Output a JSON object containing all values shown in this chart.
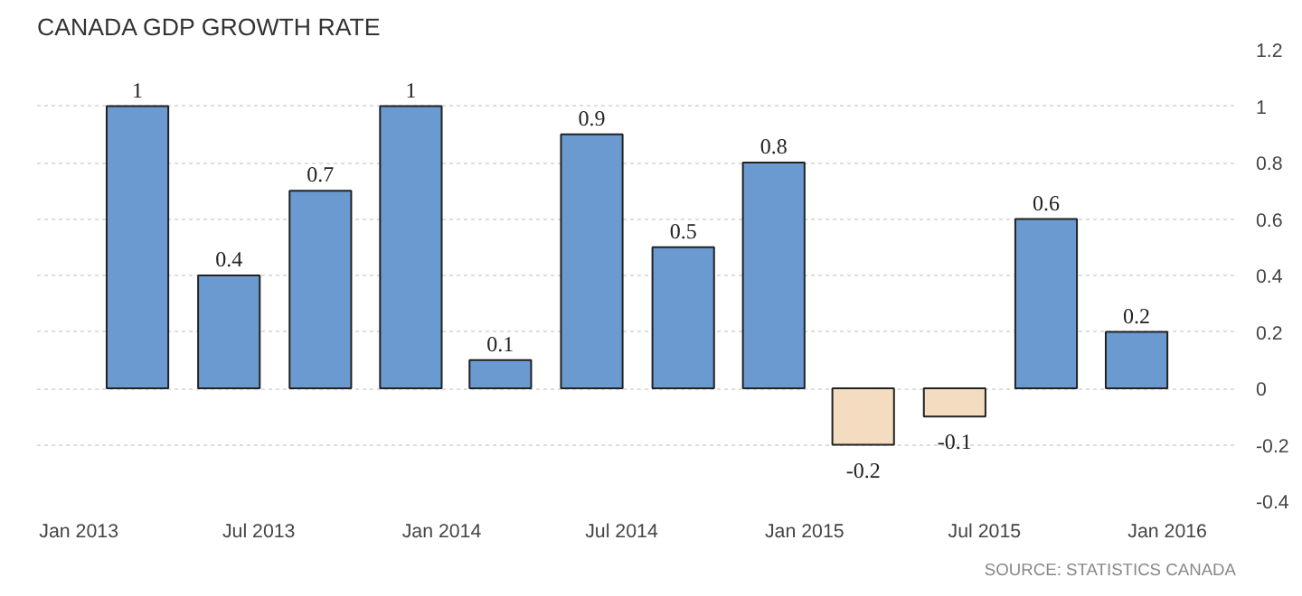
{
  "chart_data": {
    "type": "bar",
    "title": "CANADA GDP GROWTH RATE",
    "x": [
      "2013-03",
      "2013-06",
      "2013-09",
      "2013-12",
      "2014-03",
      "2014-06",
      "2014-09",
      "2014-12",
      "2015-03",
      "2015-06",
      "2015-09",
      "2015-12"
    ],
    "values": [
      1,
      0.4,
      0.7,
      1,
      0.1,
      0.9,
      0.5,
      0.8,
      -0.2,
      -0.1,
      0.6,
      0.2
    ],
    "colors": [
      "#6a9acf",
      "#6a9acf",
      "#6a9acf",
      "#6a9acf",
      "#6a9acf",
      "#6a9acf",
      "#6a9acf",
      "#6a9acf",
      "#f3dcc0",
      "#f3dcc0",
      "#6a9acf",
      "#6a9acf"
    ],
    "data_labels": true,
    "xlim": [
      "2012-11-20",
      "2016-03-10"
    ],
    "xticks": [
      {
        "value": "2013-01",
        "label": "Jan 2013"
      },
      {
        "value": "2013-07",
        "label": "Jul 2013"
      },
      {
        "value": "2014-01",
        "label": "Jan 2014"
      },
      {
        "value": "2014-07",
        "label": "Jul 2014"
      },
      {
        "value": "2015-01",
        "label": "Jan 2015"
      },
      {
        "value": "2015-07",
        "label": "Jul 2015"
      },
      {
        "value": "2016-01",
        "label": "Jan 2016"
      }
    ],
    "ylim": [
      -0.4,
      1.2
    ],
    "yticks": [
      -0.4,
      -0.2,
      0,
      0.2,
      0.4,
      0.6,
      0.8,
      1,
      1.2
    ],
    "grid": "y",
    "annotations": [
      "SOURCE: STATISTICS CANADA"
    ]
  }
}
